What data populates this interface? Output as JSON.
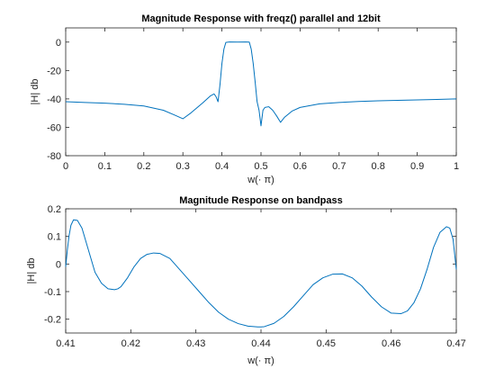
{
  "colors": {
    "series": "#0072BD",
    "axis": "#262626",
    "background": "#ffffff"
  },
  "chart_data": [
    {
      "type": "line",
      "title": "Magnitude Response with freqz() parallel and 12bit",
      "xlabel": "w(· π)",
      "ylabel": "|H| db",
      "xlim": [
        0,
        1
      ],
      "ylim": [
        -80,
        10
      ],
      "xticks": [
        0,
        0.1,
        0.2,
        0.3,
        0.4,
        0.5,
        0.6,
        0.7,
        0.8,
        0.9,
        1
      ],
      "xtick_labels": [
        "0",
        "0.1",
        "0.2",
        "0.3",
        "0.4",
        "0.5",
        "0.6",
        "0.7",
        "0.8",
        "0.9",
        "1"
      ],
      "yticks": [
        -80,
        -60,
        -40,
        -20,
        0
      ],
      "ytick_labels": [
        "-80",
        "-60",
        "-40",
        "-20",
        "0"
      ],
      "grid": false,
      "series": [
        {
          "x": [
            0,
            0.05,
            0.1,
            0.15,
            0.2,
            0.25,
            0.28,
            0.3,
            0.32,
            0.35,
            0.37,
            0.38,
            0.385,
            0.39,
            0.395,
            0.4,
            0.405,
            0.41,
            0.42,
            0.44,
            0.46,
            0.47,
            0.475,
            0.48,
            0.485,
            0.49,
            0.495,
            0.5,
            0.505,
            0.51,
            0.52,
            0.53,
            0.54,
            0.55,
            0.56,
            0.58,
            0.6,
            0.65,
            0.7,
            0.75,
            0.8,
            0.85,
            0.9,
            0.95,
            1
          ],
          "y": [
            -42,
            -42.5,
            -43,
            -43.8,
            -45,
            -48,
            -51.5,
            -54,
            -50,
            -43,
            -38,
            -36.5,
            -38.5,
            -42,
            -30,
            -15,
            -5,
            -0.2,
            0.1,
            0,
            0.1,
            0,
            -5,
            -15,
            -28,
            -42,
            -48,
            -59,
            -48,
            -46,
            -45.5,
            -48,
            -52,
            -56.5,
            -53,
            -48.5,
            -46,
            -43.5,
            -42.5,
            -41.8,
            -41.3,
            -41,
            -40.7,
            -40.4,
            -40
          ]
        }
      ]
    },
    {
      "type": "line",
      "title": "Magnitude Response on bandpass",
      "xlabel": "w(· π)",
      "ylabel": "|H| db",
      "xlim": [
        0.41,
        0.47
      ],
      "ylim": [
        -0.25,
        0.2
      ],
      "xticks": [
        0.41,
        0.42,
        0.43,
        0.44,
        0.45,
        0.46,
        0.47
      ],
      "xtick_labels": [
        "0.41",
        "0.42",
        "0.43",
        "0.44",
        "0.45",
        "0.46",
        "0.47"
      ],
      "yticks": [
        -0.2,
        -0.1,
        0,
        0.1,
        0.2
      ],
      "ytick_labels": [
        "-0.2",
        "-0.1",
        "0",
        "0.1",
        "0.2"
      ],
      "grid": false,
      "series": [
        {
          "x": [
            0.41,
            0.41025,
            0.4105,
            0.4108,
            0.4112,
            0.4118,
            0.4125,
            0.4135,
            0.4145,
            0.4155,
            0.4165,
            0.4175,
            0.418,
            0.4185,
            0.4195,
            0.4205,
            0.4215,
            0.4225,
            0.4235,
            0.4245,
            0.426,
            0.4275,
            0.429,
            0.4305,
            0.432,
            0.4335,
            0.435,
            0.4365,
            0.438,
            0.4395,
            0.44,
            0.4405,
            0.442,
            0.4435,
            0.445,
            0.4465,
            0.448,
            0.4495,
            0.451,
            0.4525,
            0.454,
            0.4555,
            0.457,
            0.4585,
            0.46,
            0.4615,
            0.4625,
            0.4635,
            0.4645,
            0.4655,
            0.4665,
            0.4675,
            0.4685,
            0.469,
            0.4695,
            0.47
          ],
          "y": [
            -0.01,
            0.05,
            0.1,
            0.14,
            0.16,
            0.158,
            0.13,
            0.05,
            -0.03,
            -0.07,
            -0.09,
            -0.093,
            -0.09,
            -0.082,
            -0.05,
            -0.01,
            0.02,
            0.035,
            0.04,
            0.038,
            0.02,
            -0.02,
            -0.06,
            -0.1,
            -0.14,
            -0.175,
            -0.2,
            -0.216,
            -0.225,
            -0.228,
            -0.228,
            -0.227,
            -0.215,
            -0.19,
            -0.155,
            -0.115,
            -0.075,
            -0.05,
            -0.037,
            -0.036,
            -0.05,
            -0.08,
            -0.12,
            -0.155,
            -0.178,
            -0.18,
            -0.17,
            -0.14,
            -0.09,
            -0.02,
            0.06,
            0.115,
            0.135,
            0.13,
            0.09,
            -0.02
          ]
        }
      ]
    }
  ]
}
